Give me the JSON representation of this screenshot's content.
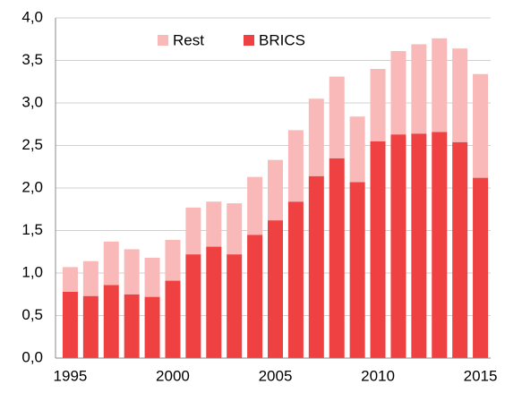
{
  "chart_data": {
    "type": "stacked_bar",
    "categories": [
      "1995",
      null,
      null,
      null,
      null,
      "2000",
      null,
      null,
      null,
      null,
      "2005",
      null,
      null,
      null,
      null,
      "2010",
      null,
      null,
      null,
      null,
      "2015"
    ],
    "series": [
      {
        "name": "BRICS",
        "color": "#ef4141",
        "values": [
          0.78,
          0.73,
          0.86,
          0.75,
          0.72,
          0.91,
          1.22,
          1.31,
          1.22,
          1.45,
          1.62,
          1.84,
          2.14,
          2.35,
          2.07,
          2.55,
          2.63,
          2.64,
          2.66,
          2.54,
          2.12
        ]
      },
      {
        "name": "Rest",
        "color": "#f9b9b9",
        "values": [
          0.29,
          0.41,
          0.51,
          0.53,
          0.46,
          0.48,
          0.55,
          0.53,
          0.6,
          0.68,
          0.71,
          0.84,
          0.91,
          0.96,
          0.77,
          0.85,
          0.98,
          1.05,
          1.1,
          1.1,
          1.22
        ]
      }
    ],
    "ylim": [
      0,
      4
    ],
    "yticks": [
      {
        "value": 0,
        "label": "0,0"
      },
      {
        "value": 0.5,
        "label": "0,5"
      },
      {
        "value": 1,
        "label": "1,0"
      },
      {
        "value": 1.5,
        "label": "1,5"
      },
      {
        "value": 2,
        "label": "2,0"
      },
      {
        "value": 2.5,
        "label": "2,5"
      },
      {
        "value": 3,
        "label": "3,0"
      },
      {
        "value": 3.5,
        "label": "3,5"
      },
      {
        "value": 4,
        "label": "4,0"
      }
    ],
    "grid": true
  }
}
